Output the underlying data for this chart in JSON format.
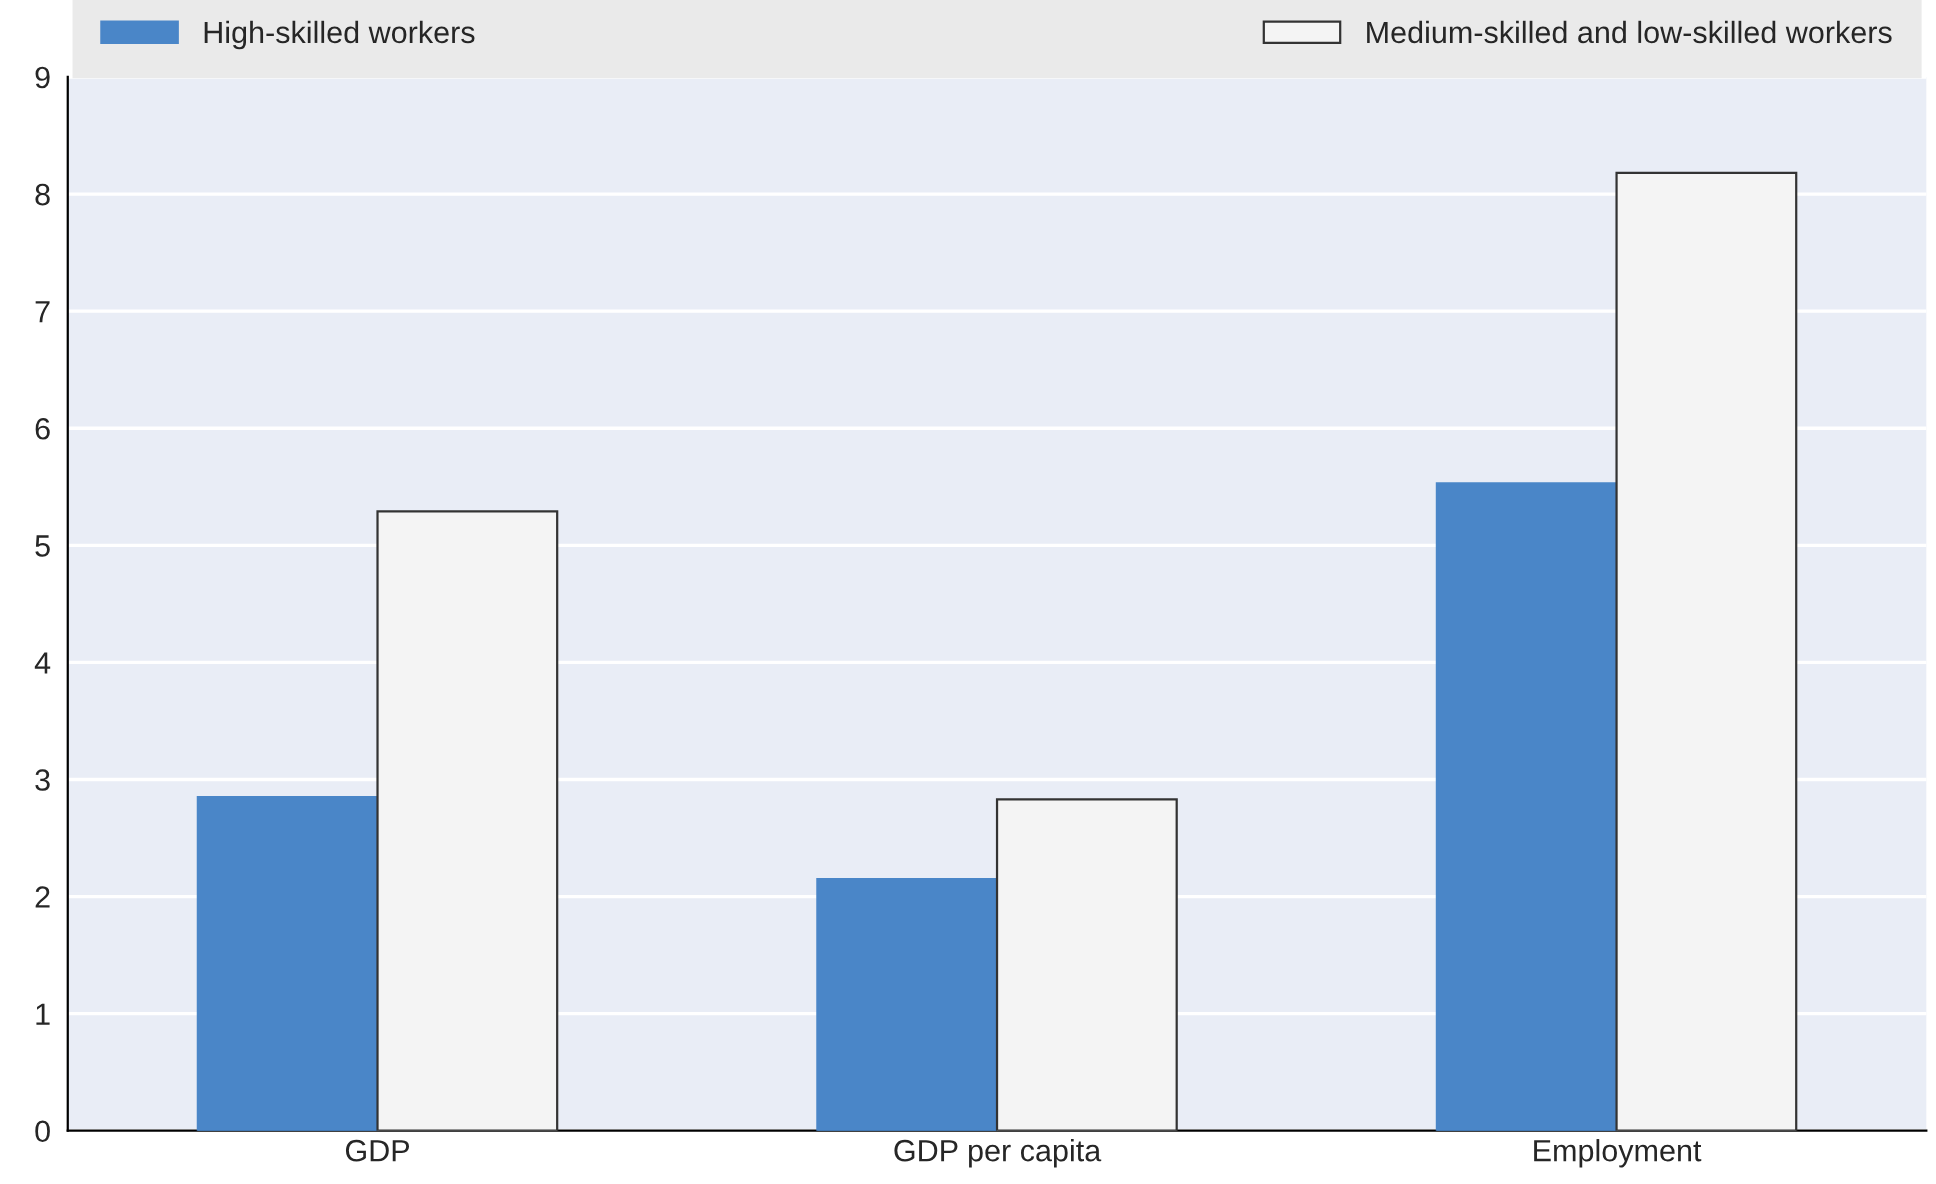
{
  "chart_data": {
    "type": "bar",
    "categories": [
      "GDP",
      "GDP per capita",
      "Employment"
    ],
    "series": [
      {
        "name": "High-skilled workers",
        "color": "#4a86c8",
        "values": [
          2.85,
          2.15,
          5.53
        ]
      },
      {
        "name": "Medium-skilled and low-skilled workers",
        "color": "#f4f4f4",
        "values": [
          5.29,
          2.83,
          8.18
        ]
      }
    ],
    "ylim": [
      0,
      9
    ],
    "yticks": [
      0,
      1,
      2,
      3,
      4,
      5,
      6,
      7,
      8,
      9
    ],
    "grid": "y",
    "legend": "top"
  }
}
